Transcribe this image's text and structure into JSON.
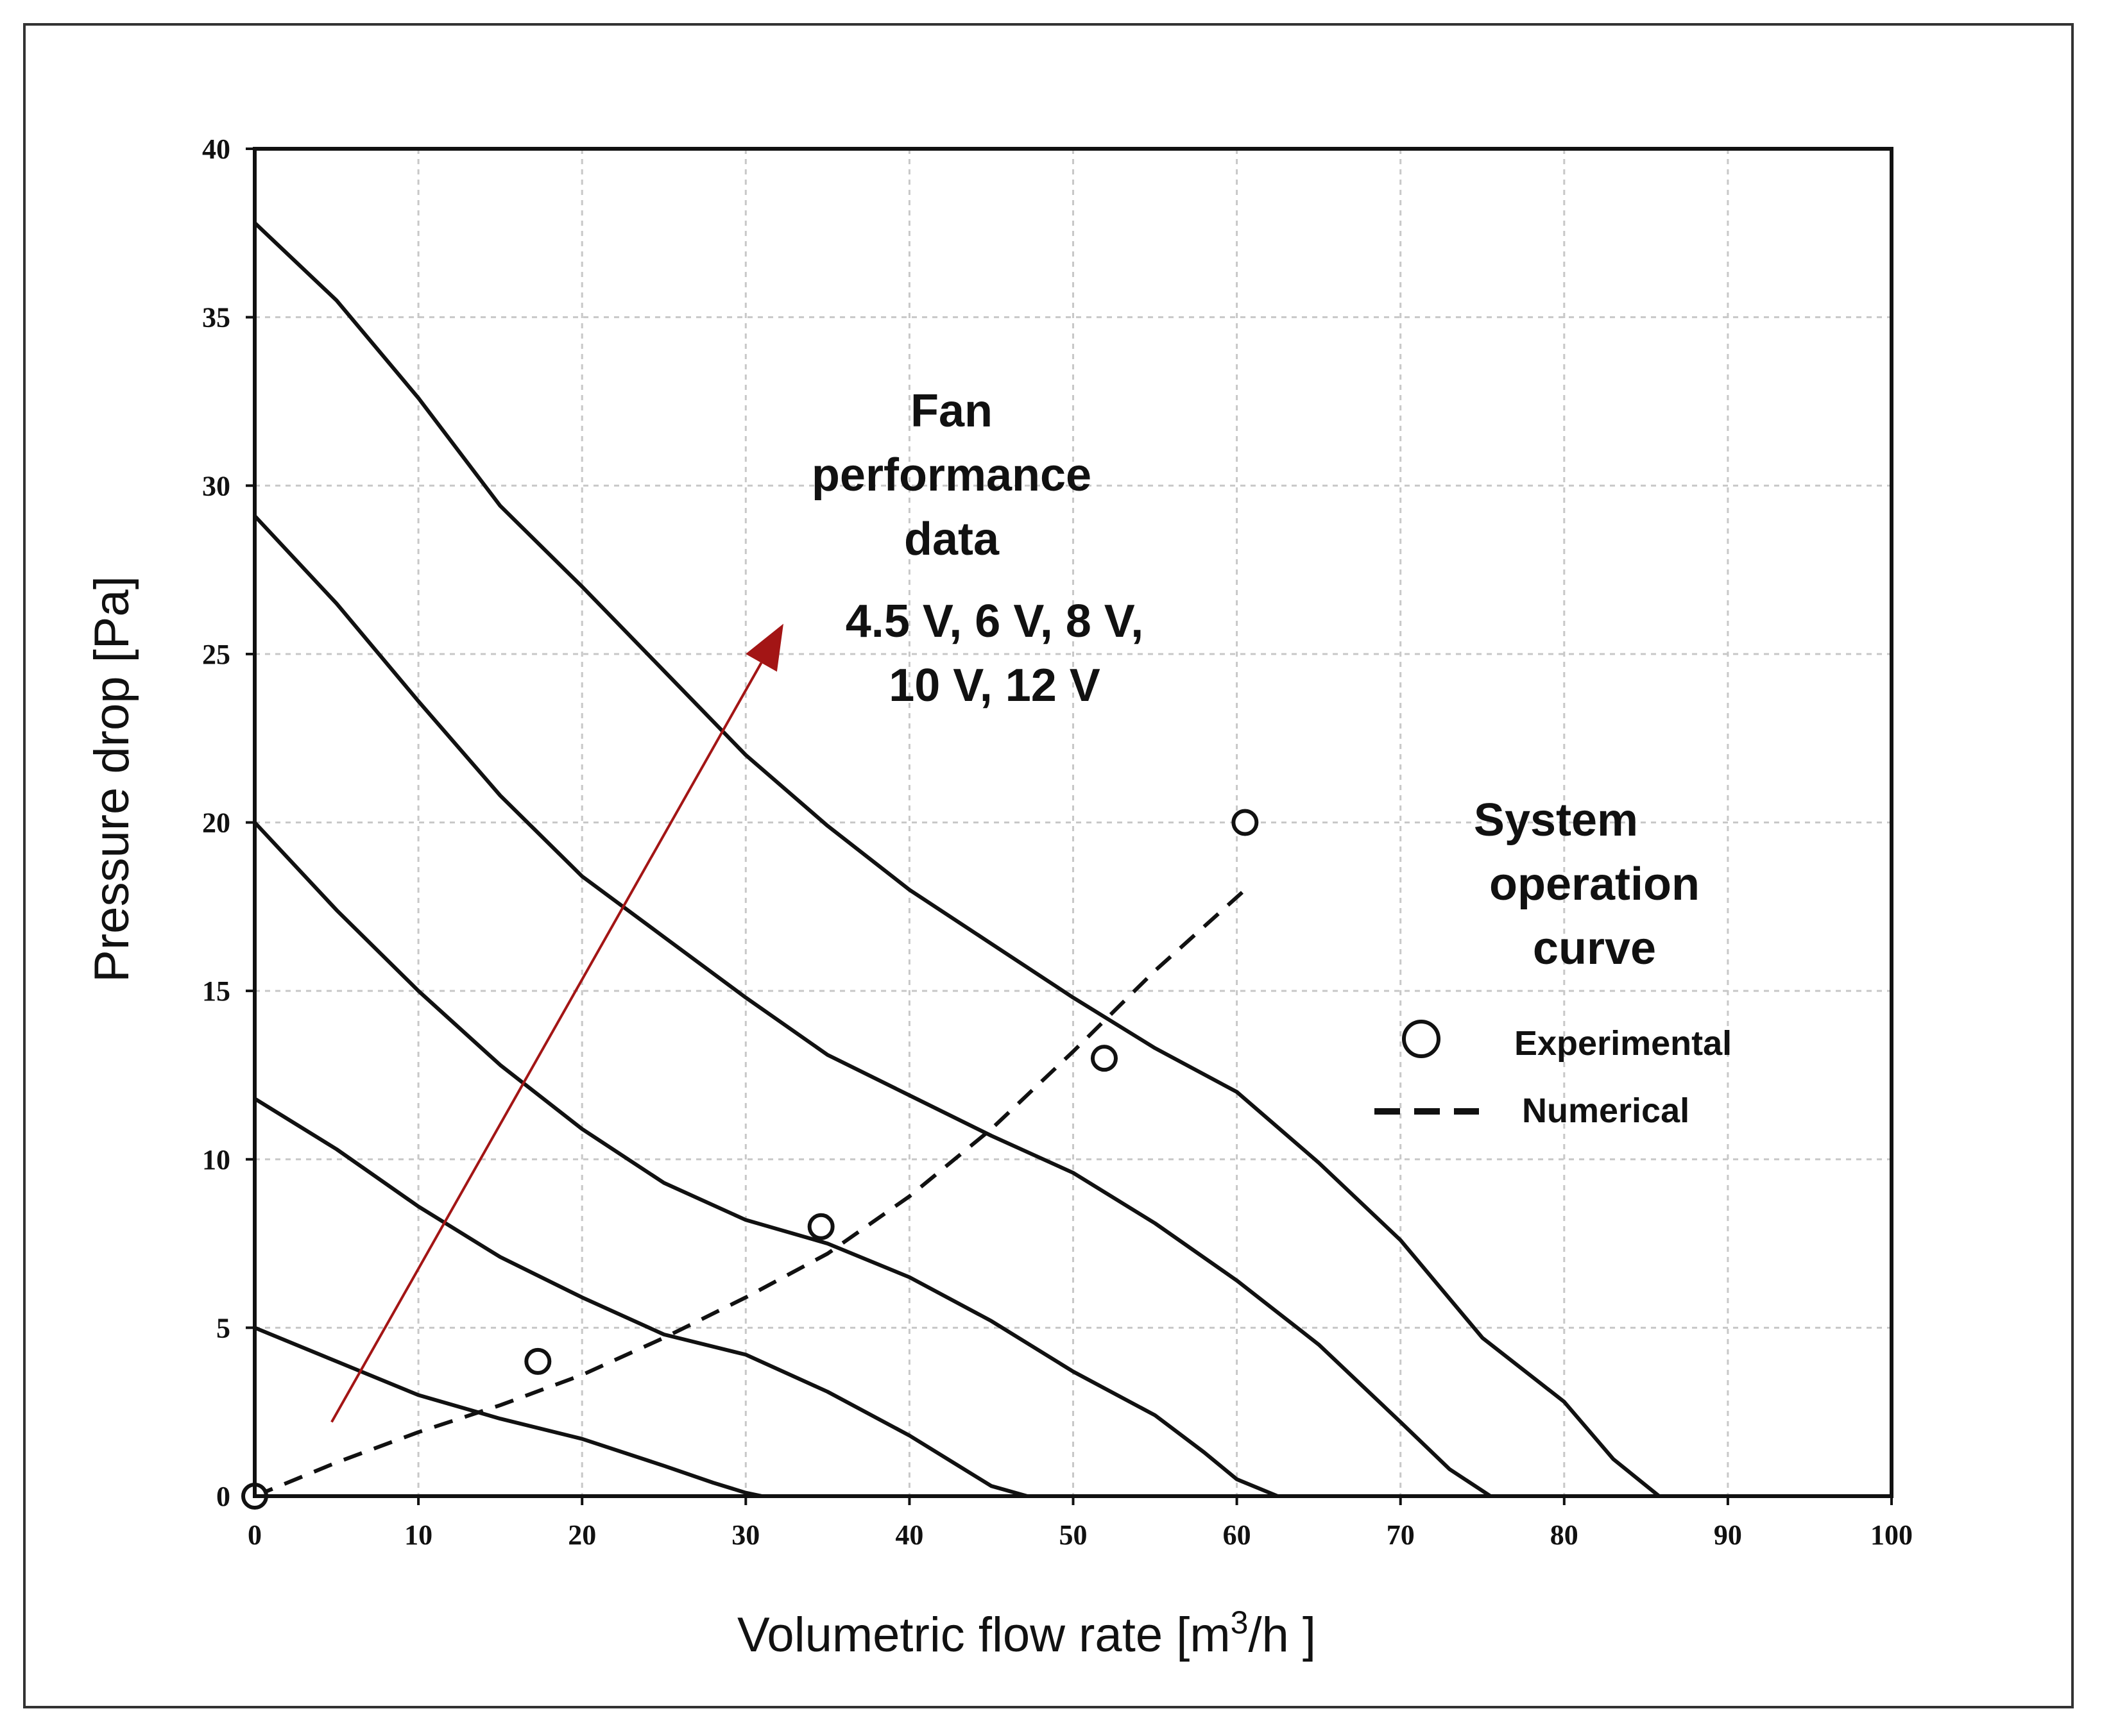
{
  "chart_data": {
    "type": "line",
    "xlabel": "Volumetric flow rate [m³/h ]",
    "ylabel": "Pressure drop [Pa]",
    "xlim": [
      0,
      100
    ],
    "ylim": [
      0,
      40
    ],
    "xticks": [
      "0",
      "10",
      "20",
      "30",
      "40",
      "50",
      "60",
      "70",
      "80",
      "90",
      "100"
    ],
    "yticks": [
      "0",
      "5",
      "10",
      "15",
      "20",
      "25",
      "30",
      "35",
      "40"
    ],
    "grid": true,
    "series": [
      {
        "name": "4.5 V",
        "style": "solid",
        "x": [
          0,
          5,
          10,
          15,
          20,
          25,
          28,
          30,
          31
        ],
        "y": [
          5,
          4,
          3,
          2.3,
          1.7,
          0.9,
          0.4,
          0.1,
          0
        ]
      },
      {
        "name": "6 V",
        "style": "solid",
        "x": [
          0,
          5,
          10,
          15,
          20,
          25,
          30,
          35,
          40,
          43,
          45,
          47.2
        ],
        "y": [
          11.8,
          10.3,
          8.6,
          7.1,
          5.9,
          4.8,
          4.2,
          3.1,
          1.8,
          0.9,
          0.3,
          0
        ]
      },
      {
        "name": "8 V",
        "style": "solid",
        "x": [
          0,
          5,
          10,
          15,
          20,
          25,
          30,
          35,
          40,
          45,
          50,
          55,
          58,
          60,
          62.5
        ],
        "y": [
          20,
          17.4,
          15,
          12.8,
          10.9,
          9.3,
          8.2,
          7.5,
          6.5,
          5.2,
          3.7,
          2.4,
          1.3,
          0.5,
          0
        ]
      },
      {
        "name": "10 V",
        "style": "solid",
        "x": [
          0,
          5,
          10,
          15,
          20,
          25,
          30,
          35,
          40,
          45,
          50,
          55,
          60,
          65,
          70,
          73,
          75.5
        ],
        "y": [
          29.1,
          26.5,
          23.6,
          20.8,
          18.4,
          16.6,
          14.8,
          13.1,
          11.9,
          10.7,
          9.6,
          8.1,
          6.4,
          4.5,
          2.2,
          0.8,
          0
        ]
      },
      {
        "name": "12 V",
        "style": "solid",
        "x": [
          0,
          5,
          10,
          15,
          20,
          25,
          30,
          35,
          40,
          45,
          50,
          55,
          60,
          65,
          70,
          75,
          80,
          83,
          85.8
        ],
        "y": [
          37.8,
          35.5,
          32.6,
          29.4,
          27,
          24.5,
          22,
          19.9,
          18,
          16.4,
          14.8,
          13.3,
          12,
          9.9,
          7.6,
          4.7,
          2.8,
          1.1,
          0
        ]
      },
      {
        "name": "Numerical",
        "style": "dashed",
        "x": [
          0,
          5,
          10,
          15,
          20,
          25,
          30,
          35,
          40,
          45,
          50,
          55,
          60.5
        ],
        "y": [
          0,
          1,
          1.9,
          2.7,
          3.6,
          4.7,
          5.9,
          7.2,
          8.9,
          10.9,
          13.2,
          15.6,
          18
        ]
      },
      {
        "name": "Experimental",
        "style": "marker",
        "x": [
          0,
          17.3,
          34.6,
          51.9,
          60.5
        ],
        "y": [
          0,
          4,
          8,
          13,
          20
        ]
      }
    ],
    "arrow": {
      "from": [
        4.7,
        2.2
      ],
      "to": [
        32.3,
        25.9
      ],
      "color": "#a31515"
    },
    "annotations": {
      "fan_title": [
        "Fan",
        "performance",
        "data"
      ],
      "voltages": [
        "4.5 V, 6 V, 8 V,",
        "10 V, 12 V"
      ],
      "system_title": [
        "System",
        "operation",
        "curve"
      ]
    },
    "legend": {
      "experimental": "Experimental",
      "numerical": "Numerical"
    },
    "colors": {
      "curve": "#111111",
      "grid": "#c8c8c8",
      "arrow": "#a31515"
    }
  }
}
